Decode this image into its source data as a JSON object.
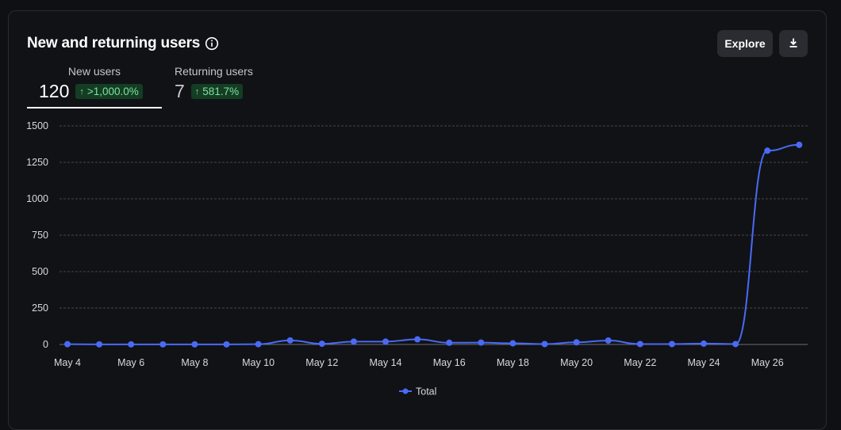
{
  "card": {
    "title": "New and returning users",
    "info_icon": "info-circle-icon",
    "explore_label": "Explore",
    "download_icon": "download-icon"
  },
  "metrics": [
    {
      "label": "New users",
      "value": "120",
      "change": ">1,000.0%",
      "trend": "up"
    },
    {
      "label": "Returning users",
      "value": "7",
      "change": "581.7%",
      "trend": "up"
    }
  ],
  "colors": {
    "line": "#4a6af5",
    "badge_bg": "#143d24",
    "badge_text": "#7ee2a0"
  },
  "chart_data": {
    "type": "line",
    "x_ticks": [
      "May 4",
      "May 6",
      "May 8",
      "May 10",
      "May 12",
      "May 14",
      "May 16",
      "May 18",
      "May 20",
      "May 22",
      "May 24",
      "May 26"
    ],
    "y_ticks": [
      "0",
      "250",
      "500",
      "750",
      "1000",
      "1250",
      "1500"
    ],
    "ylim": [
      0,
      1500
    ],
    "grid": true,
    "legend_position": "bottom-center",
    "series": [
      {
        "name": "Total",
        "x": [
          "May 4",
          "May 5",
          "May 6",
          "May 7",
          "May 8",
          "May 9",
          "May 10",
          "May 11",
          "May 12",
          "May 13",
          "May 14",
          "May 15",
          "May 16",
          "May 17",
          "May 18",
          "May 19",
          "May 20",
          "May 21",
          "May 22",
          "May 23",
          "May 24",
          "May 25",
          "May 26",
          "May 27"
        ],
        "values": [
          2,
          1,
          1,
          1,
          1,
          1,
          2,
          28,
          5,
          20,
          20,
          35,
          12,
          13,
          8,
          3,
          15,
          27,
          3,
          3,
          6,
          3,
          1330,
          1370
        ]
      }
    ]
  }
}
